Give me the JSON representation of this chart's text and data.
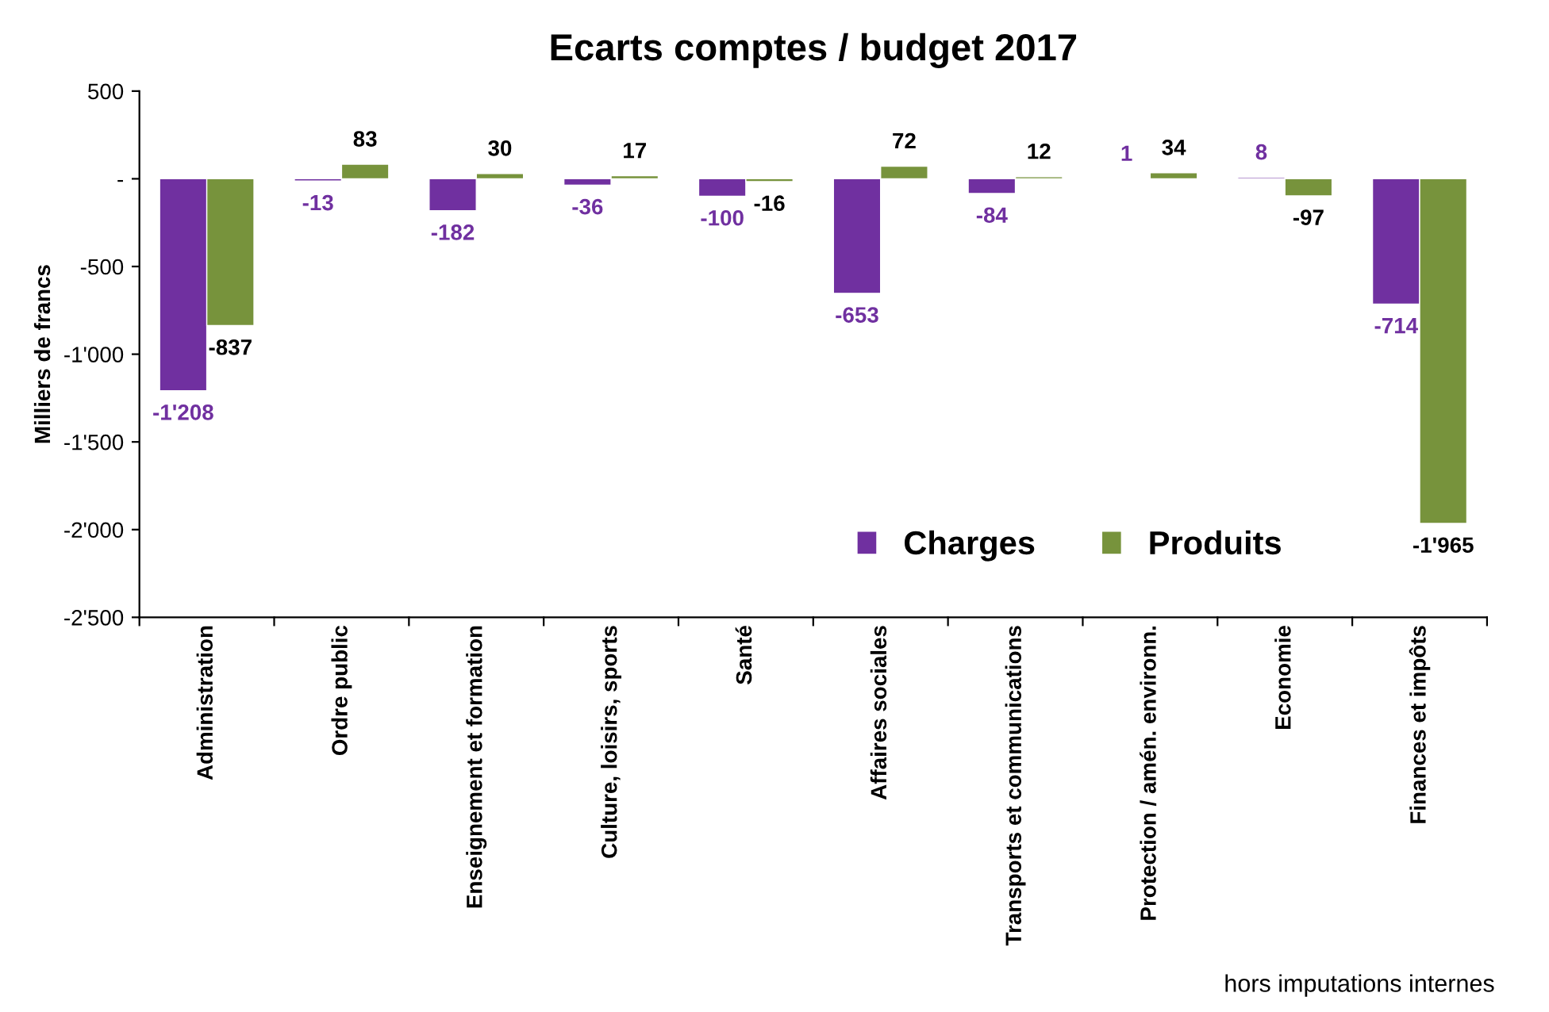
{
  "chart_data": {
    "type": "bar",
    "title": "Ecarts comptes / budget 2017",
    "ylabel": "Milliers de francs",
    "categories": [
      "Administration",
      "Ordre public",
      "Enseignement et formation",
      "Culture, loisirs, sports",
      "Santé",
      "Affaires sociales",
      "Transports et communications",
      "Protection / amén. environn.",
      "Economie",
      "Finances et impôts"
    ],
    "series": [
      {
        "name": "Charges",
        "color": "#7030a0",
        "values": [
          -1208,
          -13,
          -182,
          -36,
          -100,
          -653,
          -84,
          1,
          8,
          -714
        ],
        "value_labels": [
          "-1'208",
          "-13",
          "-182",
          "-36",
          "-100",
          "-653",
          "-84",
          "1",
          "8",
          "-714"
        ]
      },
      {
        "name": "Produits",
        "color": "#77933c",
        "values": [
          -837,
          83,
          30,
          17,
          -16,
          72,
          12,
          34,
          -97,
          -1965
        ],
        "value_labels": [
          "-837",
          "83",
          "30",
          "17",
          "-16",
          "72",
          "12",
          "34",
          "-97",
          "-1'965"
        ]
      }
    ],
    "ylim": [
      -2500,
      500
    ],
    "yticks": [
      500,
      {
        "value": 0,
        "label": "-"
      },
      -500,
      {
        "value": -1000,
        "label": "-1'000"
      },
      {
        "value": -1500,
        "label": "-1'500"
      },
      {
        "value": -2000,
        "label": "-2'000"
      },
      {
        "value": -2500,
        "label": "-2'500"
      }
    ],
    "grid": false,
    "legend": "bottom right",
    "annotations": [
      "hors imputations internes"
    ]
  }
}
